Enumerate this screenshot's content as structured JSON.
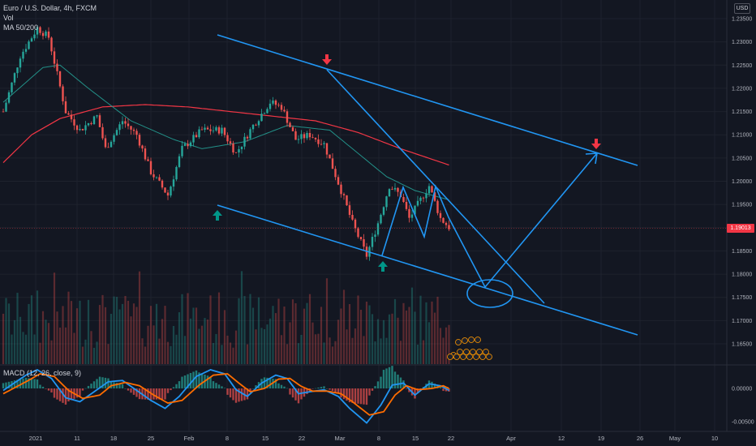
{
  "header": {
    "symbol_line": "Euro / U.S. Dollar, 4h, FXCM",
    "vol_label": "Vol",
    "ma_label": "MA 50/200",
    "macd_label": "MACD (12, 26, close, 9)",
    "currency": "USD",
    "last_price": "1.19013"
  },
  "colors": {
    "background": "#131722",
    "candle_up": "#26a69a",
    "candle_down": "#ef5350",
    "ma50": "#26a69a",
    "ma200": "#f23645",
    "drawing": "#2196f3",
    "arrow_up": "#009688",
    "arrow_down": "#f23645",
    "macd_line": "#2196f3",
    "signal_line": "#ff6d00"
  },
  "chart_data": [
    {
      "type": "candlestick",
      "title": "Euro / U.S. Dollar, 4h, FXCM",
      "price_axis": {
        "ticks": [
          "1.23500",
          "1.23000",
          "1.22500",
          "1.22000",
          "1.21500",
          "1.21000",
          "1.20500",
          "1.20000",
          "1.19500",
          "1.19000",
          "1.18500",
          "1.18000",
          "1.17500",
          "1.17000",
          "1.16500"
        ],
        "ylim": [
          1.162,
          1.238
        ]
      },
      "time_axis": {
        "labels": [
          "2021",
          "11",
          "18",
          "25",
          "Feb",
          "8",
          "15",
          "22",
          "Mar",
          "8",
          "15",
          "22",
          "Apr",
          "12",
          "19",
          "26",
          "May",
          "10"
        ]
      },
      "last_price": 1.19013,
      "anchors": [
        {
          "x": 0,
          "y": 1.215
        },
        {
          "x": 6,
          "y": 1.227
        },
        {
          "x": 12,
          "y": 1.233
        },
        {
          "x": 16,
          "y": 1.231
        },
        {
          "x": 22,
          "y": 1.215
        },
        {
          "x": 27,
          "y": 1.211
        },
        {
          "x": 33,
          "y": 1.214
        },
        {
          "x": 36,
          "y": 1.207
        },
        {
          "x": 42,
          "y": 1.213
        },
        {
          "x": 47,
          "y": 1.21
        },
        {
          "x": 52,
          "y": 1.202
        },
        {
          "x": 58,
          "y": 1.197
        },
        {
          "x": 63,
          "y": 1.207
        },
        {
          "x": 70,
          "y": 1.211
        },
        {
          "x": 77,
          "y": 1.211
        },
        {
          "x": 82,
          "y": 1.206
        },
        {
          "x": 88,
          "y": 1.212
        },
        {
          "x": 94,
          "y": 1.217
        },
        {
          "x": 98,
          "y": 1.216
        },
        {
          "x": 103,
          "y": 1.209
        },
        {
          "x": 108,
          "y": 1.21
        },
        {
          "x": 113,
          "y": 1.208
        },
        {
          "x": 119,
          "y": 1.198
        },
        {
          "x": 123,
          "y": 1.191
        },
        {
          "x": 128,
          "y": 1.184
        },
        {
          "x": 132,
          "y": 1.191
        },
        {
          "x": 136,
          "y": 1.199
        },
        {
          "x": 140,
          "y": 1.197
        },
        {
          "x": 143,
          "y": 1.192
        },
        {
          "x": 147,
          "y": 1.196
        },
        {
          "x": 150,
          "y": 1.199
        },
        {
          "x": 154,
          "y": 1.192
        },
        {
          "x": 157,
          "y": 1.1901
        }
      ],
      "ma50_points": [
        {
          "x": 0,
          "y": 1.217
        },
        {
          "x": 14,
          "y": 1.2245
        },
        {
          "x": 20,
          "y": 1.225
        },
        {
          "x": 30,
          "y": 1.22
        },
        {
          "x": 45,
          "y": 1.213
        },
        {
          "x": 60,
          "y": 1.209
        },
        {
          "x": 70,
          "y": 1.207
        },
        {
          "x": 85,
          "y": 1.2085
        },
        {
          "x": 100,
          "y": 1.212
        },
        {
          "x": 115,
          "y": 1.211
        },
        {
          "x": 125,
          "y": 1.206
        },
        {
          "x": 135,
          "y": 1.201
        },
        {
          "x": 145,
          "y": 1.198
        },
        {
          "x": 157,
          "y": 1.196
        }
      ],
      "ma200_points": [
        {
          "x": 0,
          "y": 1.204
        },
        {
          "x": 10,
          "y": 1.21
        },
        {
          "x": 20,
          "y": 1.2135
        },
        {
          "x": 35,
          "y": 1.216
        },
        {
          "x": 50,
          "y": 1.2165
        },
        {
          "x": 65,
          "y": 1.216
        },
        {
          "x": 80,
          "y": 1.215
        },
        {
          "x": 95,
          "y": 1.214
        },
        {
          "x": 110,
          "y": 1.213
        },
        {
          "x": 125,
          "y": 1.2105
        },
        {
          "x": 140,
          "y": 1.207
        },
        {
          "x": 157,
          "y": 1.2035
        }
      ]
    },
    {
      "type": "bar",
      "title": "Vol"
    },
    {
      "type": "line",
      "title": "MACD (12, 26, close, 9)",
      "ticks": [
        "0.00000",
        "-0.00500"
      ],
      "ylim": [
        -0.0058,
        0.0035
      ],
      "series": [
        {
          "name": "MACD",
          "anchors": [
            {
              "x": 0,
              "y": -0.0003
            },
            {
              "x": 8,
              "y": 0.002
            },
            {
              "x": 12,
              "y": 0.0028
            },
            {
              "x": 17,
              "y": 0.0015
            },
            {
              "x": 22,
              "y": -0.0014
            },
            {
              "x": 27,
              "y": -0.002
            },
            {
              "x": 33,
              "y": -0.0002
            },
            {
              "x": 37,
              "y": 0.001
            },
            {
              "x": 42,
              "y": 0.0012
            },
            {
              "x": 47,
              "y": -0.0003
            },
            {
              "x": 52,
              "y": -0.0018
            },
            {
              "x": 57,
              "y": -0.003
            },
            {
              "x": 62,
              "y": -0.0012
            },
            {
              "x": 68,
              "y": 0.0018
            },
            {
              "x": 73,
              "y": 0.0028
            },
            {
              "x": 78,
              "y": 0.0022
            },
            {
              "x": 82,
              "y": -0.0002
            },
            {
              "x": 86,
              "y": -0.0012
            },
            {
              "x": 91,
              "y": 0.0008
            },
            {
              "x": 96,
              "y": 0.002
            },
            {
              "x": 100,
              "y": 0.0015
            },
            {
              "x": 104,
              "y": -0.0008
            },
            {
              "x": 108,
              "y": -0.0005
            },
            {
              "x": 113,
              "y": -0.0002
            },
            {
              "x": 118,
              "y": -0.0012
            },
            {
              "x": 122,
              "y": -0.003
            },
            {
              "x": 128,
              "y": -0.0052
            },
            {
              "x": 133,
              "y": -0.0025
            },
            {
              "x": 137,
              "y": 0.0005
            },
            {
              "x": 141,
              "y": 0.0008
            },
            {
              "x": 145,
              "y": -0.001
            },
            {
              "x": 150,
              "y": 0.0007
            },
            {
              "x": 154,
              "y": 0.0004
            },
            {
              "x": 157,
              "y": -0.0003
            }
          ]
        },
        {
          "name": "Signal",
          "anchors": [
            {
              "x": 0,
              "y": -0.0008
            },
            {
              "x": 8,
              "y": 0.001
            },
            {
              "x": 13,
              "y": 0.0022
            },
            {
              "x": 18,
              "y": 0.0018
            },
            {
              "x": 23,
              "y": -0.0003
            },
            {
              "x": 28,
              "y": -0.0015
            },
            {
              "x": 34,
              "y": -0.001
            },
            {
              "x": 38,
              "y": 0.0004
            },
            {
              "x": 43,
              "y": 0.0009
            },
            {
              "x": 48,
              "y": 0.0004
            },
            {
              "x": 53,
              "y": -0.001
            },
            {
              "x": 58,
              "y": -0.0022
            },
            {
              "x": 63,
              "y": -0.0018
            },
            {
              "x": 69,
              "y": 0.0005
            },
            {
              "x": 74,
              "y": 0.002
            },
            {
              "x": 79,
              "y": 0.0022
            },
            {
              "x": 83,
              "y": 0.0008
            },
            {
              "x": 87,
              "y": -0.0005
            },
            {
              "x": 92,
              "y": 0.0
            },
            {
              "x": 97,
              "y": 0.0014
            },
            {
              "x": 101,
              "y": 0.0015
            },
            {
              "x": 105,
              "y": 0.0003
            },
            {
              "x": 109,
              "y": -0.0004
            },
            {
              "x": 114,
              "y": -0.0004
            },
            {
              "x": 119,
              "y": -0.0008
            },
            {
              "x": 123,
              "y": -0.002
            },
            {
              "x": 129,
              "y": -0.004
            },
            {
              "x": 134,
              "y": -0.0035
            },
            {
              "x": 138,
              "y": -0.001
            },
            {
              "x": 142,
              "y": 0.0004
            },
            {
              "x": 146,
              "y": -0.0002
            },
            {
              "x": 151,
              "y": 0.0
            },
            {
              "x": 155,
              "y": 0.0004
            },
            {
              "x": 157,
              "y": 0.0
            }
          ]
        }
      ]
    }
  ]
}
